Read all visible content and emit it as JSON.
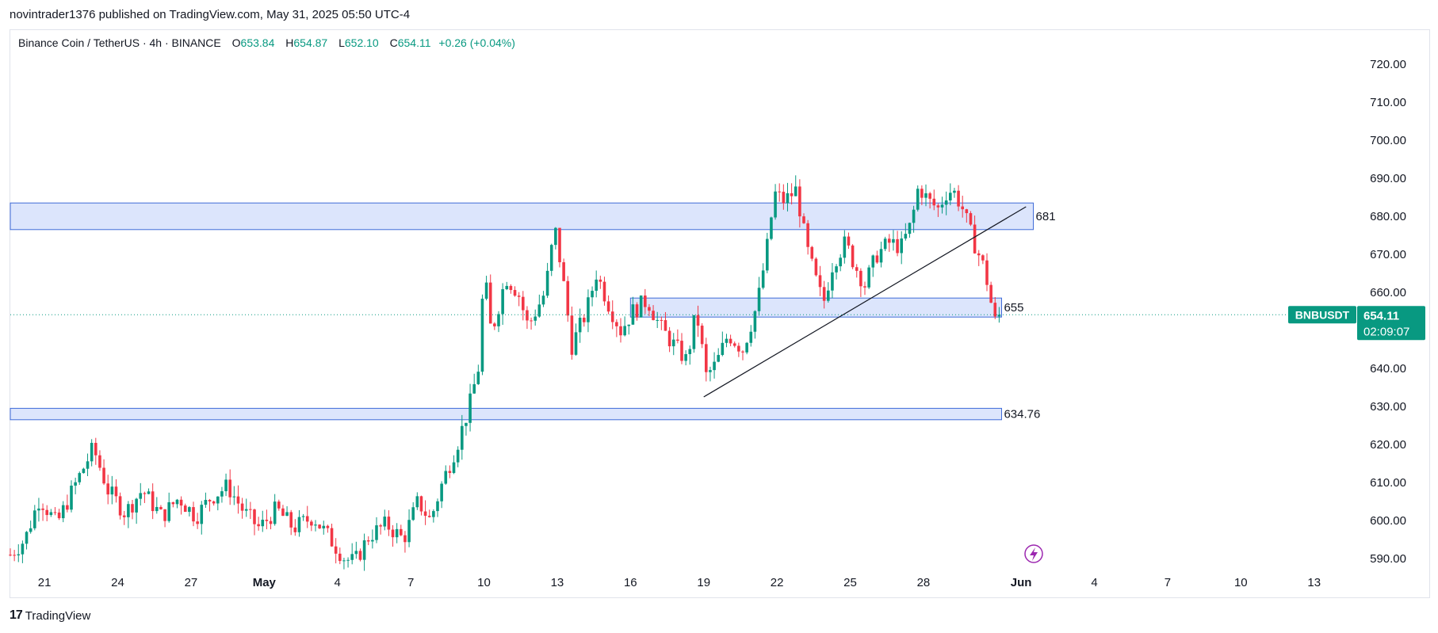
{
  "published": "novintrader1376 published on TradingView.com, May 31, 2025 05:50 UTC-4",
  "legend": {
    "symbol": "Binance Coin / TetherUS · 4h · BINANCE",
    "o_label": "O",
    "o": "653.84",
    "h_label": "H",
    "h": "654.87",
    "l_label": "L",
    "l": "652.10",
    "c_label": "C",
    "c": "654.11",
    "change": "+0.26 (+0.04%)"
  },
  "brand": {
    "name": "TradingView",
    "mark": "17"
  },
  "colors": {
    "up": "#089981",
    "down": "#f23645",
    "zone_fill": "#d6e0fb",
    "zone_border": "#3f6bd8",
    "price_badge": "#089981",
    "accent_icon": "#9c27b0"
  },
  "icons": {
    "alert": "lightning-icon",
    "logo": "tradingview-logo-icon"
  },
  "chart_data": {
    "type": "candlestick",
    "symbol": "BNBUSDT",
    "timeframe": "4h",
    "last_price": 654.11,
    "last_price_label": "654.11",
    "countdown": "02:09:07",
    "y_range": [
      585,
      725
    ],
    "y_ticks": [
      "720.00",
      "710.00",
      "700.00",
      "690.00",
      "680.00",
      "670.00",
      "660.00",
      "640.00",
      "630.00",
      "620.00",
      "610.00",
      "600.00",
      "590.00"
    ],
    "y_tick_values": [
      720,
      710,
      700,
      690,
      680,
      670,
      660,
      640,
      630,
      620,
      610,
      600,
      590
    ],
    "x_labels": [
      "21",
      "24",
      "27",
      "May",
      "4",
      "7",
      "10",
      "13",
      "16",
      "19",
      "22",
      "25",
      "28",
      "Jun",
      "4",
      "7",
      "10",
      "13"
    ],
    "x_label_days": [
      21,
      24,
      27,
      30,
      33,
      36,
      39,
      42,
      45,
      48,
      51,
      54,
      57,
      61,
      64,
      67,
      70,
      73
    ],
    "x_axis_note": "days counted from April 1, 2025",
    "x_range": [
      19.6,
      76
    ],
    "zones": [
      {
        "label": "681",
        "x_start": 19.6,
        "x_end": 61.5,
        "y_low": 676.5,
        "y_high": 683.5
      },
      {
        "label": "655",
        "x_start": 45.0,
        "x_end": 60.2,
        "y_low": 653.5,
        "y_high": 658.5
      },
      {
        "label": "634.76",
        "x_start": 19.6,
        "x_end": 60.2,
        "y_low": 626.5,
        "y_high": 629.5
      }
    ],
    "trendline": {
      "x1": 48.0,
      "y1": 632.5,
      "x2": 61.2,
      "y2": 682.5
    },
    "key_points": [
      {
        "d": 19.6,
        "c": 591
      },
      {
        "d": 20.2,
        "c": 595
      },
      {
        "d": 20.8,
        "c": 606
      },
      {
        "d": 21.5,
        "c": 599
      },
      {
        "d": 22.3,
        "c": 610
      },
      {
        "d": 23.0,
        "c": 619
      },
      {
        "d": 23.6,
        "c": 608
      },
      {
        "d": 24.3,
        "c": 602
      },
      {
        "d": 25.0,
        "c": 608
      },
      {
        "d": 25.8,
        "c": 601
      },
      {
        "d": 26.5,
        "c": 606
      },
      {
        "d": 27.2,
        "c": 601
      },
      {
        "d": 27.8,
        "c": 606
      },
      {
        "d": 28.5,
        "c": 609
      },
      {
        "d": 29.2,
        "c": 602
      },
      {
        "d": 29.8,
        "c": 598
      },
      {
        "d": 30.5,
        "c": 603
      },
      {
        "d": 31.2,
        "c": 598
      },
      {
        "d": 32.0,
        "c": 601
      },
      {
        "d": 32.6,
        "c": 596
      },
      {
        "d": 33.3,
        "c": 590
      },
      {
        "d": 33.7,
        "c": 589
      },
      {
        "d": 34.3,
        "c": 596
      },
      {
        "d": 35.0,
        "c": 599
      },
      {
        "d": 35.7,
        "c": 595
      },
      {
        "d": 36.3,
        "c": 605
      },
      {
        "d": 36.8,
        "c": 600
      },
      {
        "d": 37.3,
        "c": 610
      },
      {
        "d": 37.9,
        "c": 620
      },
      {
        "d": 38.4,
        "c": 630
      },
      {
        "d": 38.8,
        "c": 641
      },
      {
        "d": 39.0,
        "c": 666
      },
      {
        "d": 39.3,
        "c": 649
      },
      {
        "d": 39.9,
        "c": 664
      },
      {
        "d": 40.4,
        "c": 660
      },
      {
        "d": 40.8,
        "c": 651
      },
      {
        "d": 41.5,
        "c": 660
      },
      {
        "d": 41.9,
        "c": 677
      },
      {
        "d": 42.2,
        "c": 665
      },
      {
        "d": 42.6,
        "c": 646
      },
      {
        "d": 43.2,
        "c": 655
      },
      {
        "d": 43.6,
        "c": 665
      },
      {
        "d": 44.1,
        "c": 657
      },
      {
        "d": 44.6,
        "c": 650
      },
      {
        "d": 45.1,
        "c": 655
      },
      {
        "d": 45.7,
        "c": 658
      },
      {
        "d": 46.2,
        "c": 651
      },
      {
        "d": 46.8,
        "c": 646
      },
      {
        "d": 47.3,
        "c": 642
      },
      {
        "d": 47.7,
        "c": 655
      },
      {
        "d": 48.1,
        "c": 638
      },
      {
        "d": 48.5,
        "c": 641
      },
      {
        "d": 49.0,
        "c": 649
      },
      {
        "d": 49.6,
        "c": 645
      },
      {
        "d": 50.2,
        "c": 657
      },
      {
        "d": 50.6,
        "c": 672
      },
      {
        "d": 50.9,
        "c": 686
      },
      {
        "d": 51.3,
        "c": 684
      },
      {
        "d": 51.8,
        "c": 687
      },
      {
        "d": 52.2,
        "c": 672
      },
      {
        "d": 52.6,
        "c": 663
      },
      {
        "d": 52.9,
        "c": 657
      },
      {
        "d": 53.3,
        "c": 668
      },
      {
        "d": 53.8,
        "c": 673
      },
      {
        "d": 54.2,
        "c": 667
      },
      {
        "d": 54.6,
        "c": 662
      },
      {
        "d": 55.1,
        "c": 670
      },
      {
        "d": 55.6,
        "c": 673
      },
      {
        "d": 56.1,
        "c": 672
      },
      {
        "d": 56.5,
        "c": 678
      },
      {
        "d": 56.8,
        "c": 688
      },
      {
        "d": 57.2,
        "c": 684
      },
      {
        "d": 57.6,
        "c": 682
      },
      {
        "d": 58.0,
        "c": 687
      },
      {
        "d": 58.3,
        "c": 686
      },
      {
        "d": 58.6,
        "c": 682
      },
      {
        "d": 58.9,
        "c": 676
      },
      {
        "d": 59.2,
        "c": 671
      },
      {
        "d": 59.5,
        "c": 666
      },
      {
        "d": 59.7,
        "c": 660
      },
      {
        "d": 59.85,
        "c": 654
      },
      {
        "d": 60.0,
        "c": 651
      },
      {
        "d": 60.15,
        "c": 653.84
      },
      {
        "d": 60.25,
        "c": 654.11
      }
    ]
  }
}
